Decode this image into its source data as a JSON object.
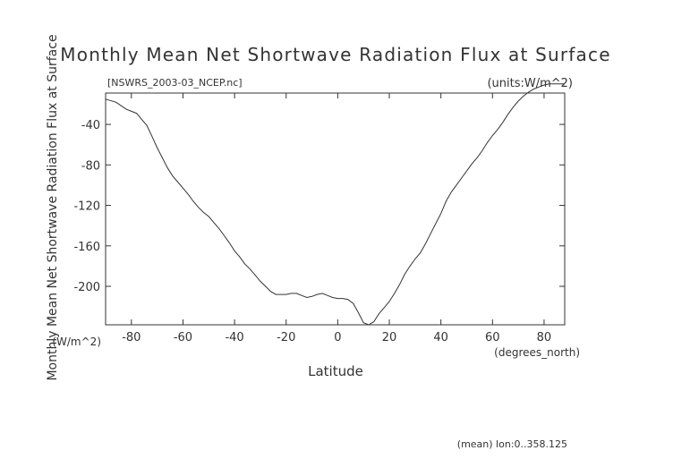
{
  "chart_data": {
    "type": "line",
    "title": "Monthly Mean Net Shortwave Radiation Flux at Surface",
    "subtitle_left": "[NSWRS_2003-03_NCEP.nc]",
    "subtitle_right": "(units:W/m^2)",
    "xlabel": "Latitude",
    "x_units": "(degrees_north)",
    "ylabel": "Monthly Mean Net Shortwave Radiation Flux at Surface",
    "y_units": "(W/m^2)",
    "footnote": "(mean) lon:0..358.125",
    "xlim": [
      -90,
      88
    ],
    "ylim": [
      -238,
      -9
    ],
    "xticks": [
      -80,
      -60,
      -40,
      -20,
      0,
      20,
      40,
      60,
      80
    ],
    "yticks": [
      -40,
      -80,
      -120,
      -160,
      -200
    ],
    "grid": false,
    "series": [
      {
        "x": [
          -90,
          -86,
          -82,
          -80,
          -78,
          -76,
          -74,
          -72,
          -70,
          -68,
          -66,
          -64,
          -62,
          -60,
          -58,
          -56,
          -54,
          -52,
          -50,
          -48,
          -46,
          -44,
          -42,
          -40,
          -38,
          -36,
          -34,
          -32,
          -30,
          -28,
          -26,
          -24,
          -22,
          -20,
          -18,
          -16,
          -14,
          -12,
          -10,
          -8,
          -6,
          -4,
          -2,
          0,
          2,
          4,
          6,
          8,
          10,
          12,
          14,
          16,
          18,
          20,
          22,
          24,
          26,
          28,
          30,
          32,
          34,
          36,
          38,
          40,
          42,
          44,
          46,
          48,
          50,
          52,
          54,
          56,
          58,
          60,
          62,
          64,
          66,
          68,
          70,
          72,
          74,
          76,
          78,
          80,
          82,
          84,
          86,
          88
        ],
        "y": [
          -15,
          -18,
          -25,
          -27,
          -29,
          -35,
          -41,
          -52,
          -63,
          -73,
          -83,
          -91,
          -97,
          -103,
          -109,
          -116,
          -122,
          -127,
          -131,
          -137,
          -143,
          -150,
          -157,
          -165,
          -171,
          -178,
          -183,
          -189,
          -195,
          -200,
          -205,
          -208,
          -208,
          -208,
          -207,
          -207,
          -209,
          -211,
          -210,
          -208,
          -207,
          -209,
          -211,
          -212,
          -212,
          -213,
          -217,
          -226,
          -236,
          -238,
          -235,
          -227,
          -221,
          -215,
          -207,
          -198,
          -188,
          -180,
          -173,
          -167,
          -158,
          -148,
          -138,
          -128,
          -116,
          -107,
          -100,
          -93,
          -86,
          -79,
          -73,
          -66,
          -58,
          -51,
          -45,
          -38,
          -30,
          -23,
          -17,
          -12,
          -8,
          -5,
          -3,
          -1,
          0,
          0,
          0,
          0
        ]
      }
    ]
  }
}
